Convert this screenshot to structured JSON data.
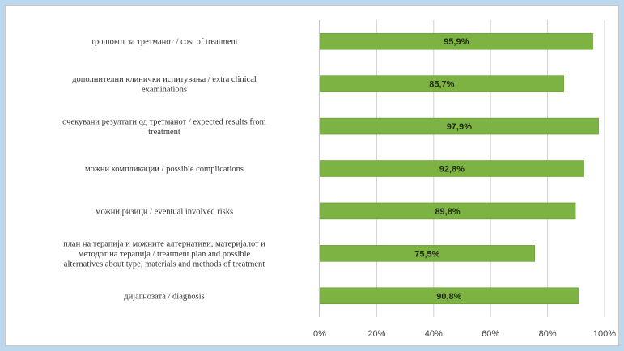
{
  "chart_data": {
    "type": "bar",
    "orientation": "horizontal",
    "categories": [
      [
        "трошокот за третманот / cost of treatment"
      ],
      [
        "дополнителни клинички испитувања / extra clinical",
        "examinations"
      ],
      [
        "очекувани резултати од третманот / expected results from",
        "treatment"
      ],
      [
        "можни компликации / possible complications"
      ],
      [
        "можни ризици / eventual involved risks"
      ],
      [
        "план на терапија и можните алтернативи, материјалот и",
        "методот на терапија / treatment plan and possible",
        "alternatives about type, materials and methods of treatment"
      ],
      [
        "дијагнозата / diagnosis"
      ]
    ],
    "values": [
      95.9,
      85.7,
      97.9,
      92.8,
      89.8,
      75.5,
      90.8
    ],
    "data_labels": [
      "95,9%",
      "85,7%",
      "97,9%",
      "92,8%",
      "89,8%",
      "75,5%",
      "90,8%"
    ],
    "xlim": [
      0,
      100
    ],
    "ticks": [
      0,
      20,
      40,
      60,
      80,
      100
    ],
    "tick_labels": [
      "0%",
      "20%",
      "40%",
      "60%",
      "80%",
      "100%"
    ],
    "grid": true,
    "legend": "none",
    "colors": {
      "bar": "#7cb342",
      "bar_border": "#5f8f2c",
      "grid": "#d0d0d0",
      "axis": "#8c8c8c"
    }
  }
}
